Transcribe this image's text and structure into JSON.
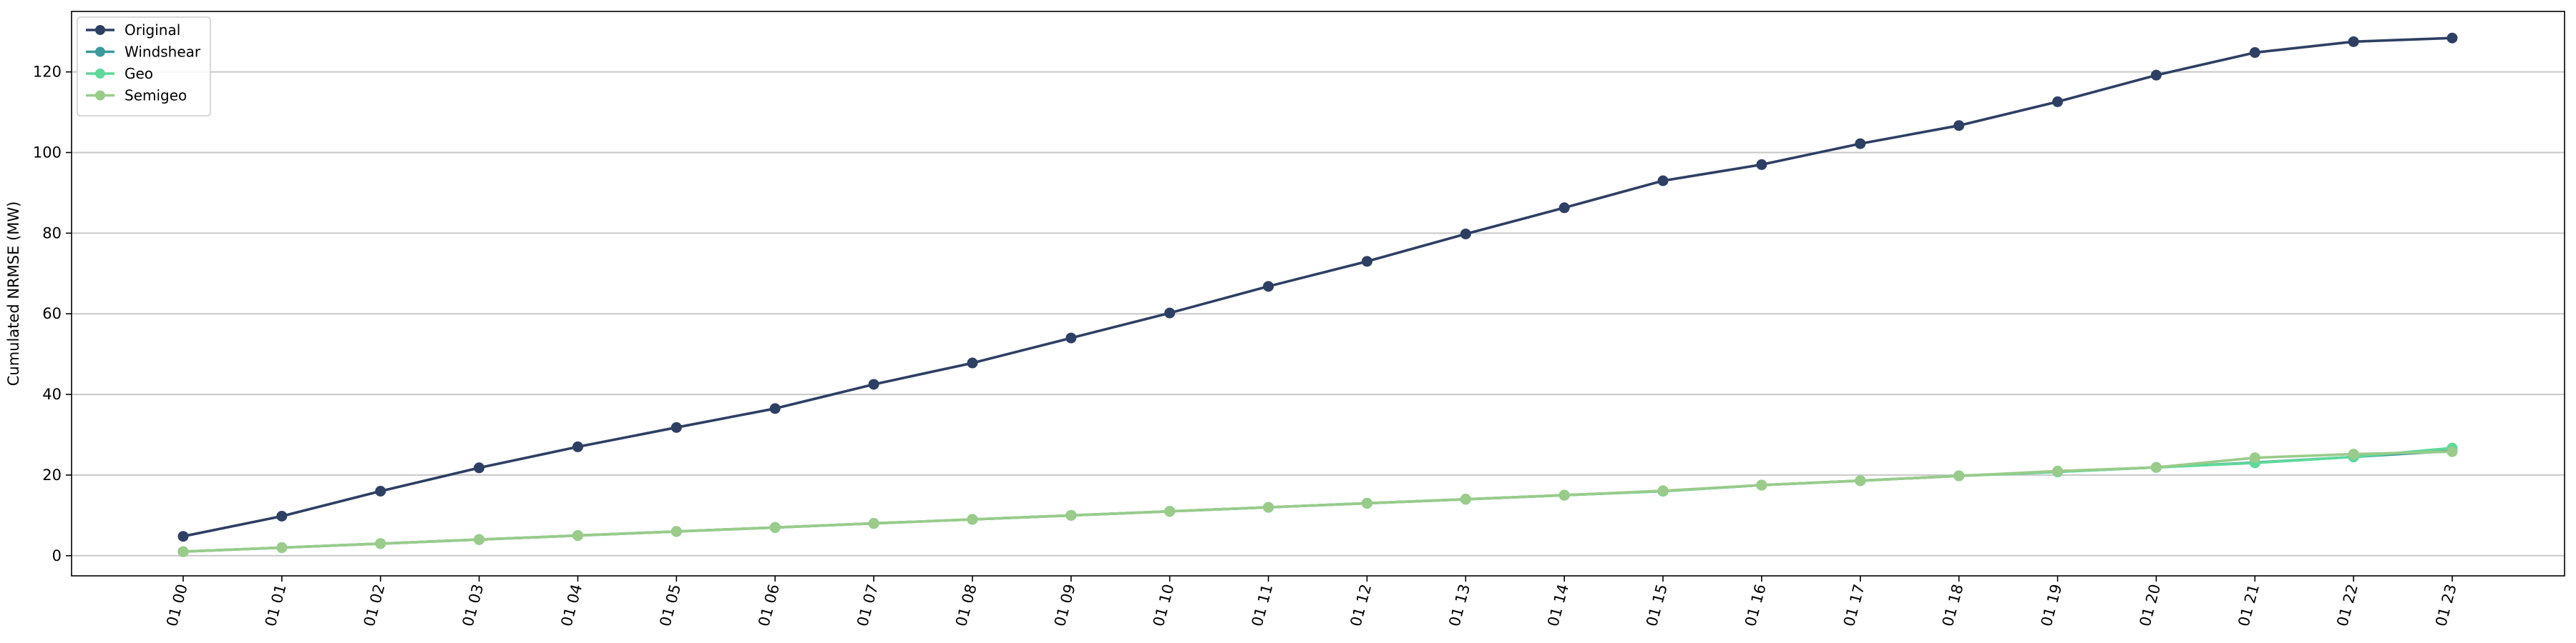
{
  "colors": {
    "original": "#2e3f64",
    "windshear": "#3b9a9a",
    "geo": "#5ed99a",
    "semigeo": "#9acb8a",
    "grid": "#c8c8c8",
    "axis": "#000000"
  },
  "chart_data": {
    "type": "line",
    "xlabel": "",
    "ylabel": "Cumulated NRMSE (MW)",
    "ylim": [
      -5,
      135
    ],
    "yticks": [
      0,
      20,
      40,
      60,
      80,
      100,
      120
    ],
    "y_grid": true,
    "legend_position": "top-left",
    "categories": [
      "01 00",
      "01 01",
      "01 02",
      "01 03",
      "01 04",
      "01 05",
      "01 06",
      "01 07",
      "01 08",
      "01 09",
      "01 10",
      "01 11",
      "01 12",
      "01 13",
      "01 14",
      "01 15",
      "01 16",
      "01 17",
      "01 18",
      "01 19",
      "01 20",
      "01 21",
      "01 22",
      "01 23"
    ],
    "series": [
      {
        "name": "Original",
        "color_key": "original",
        "values": [
          4.8,
          9.8,
          16.0,
          21.8,
          27.0,
          31.8,
          36.5,
          42.5,
          47.8,
          54.0,
          60.2,
          66.8,
          73.0,
          79.8,
          86.3,
          93.0,
          97.0,
          102.2,
          106.7,
          112.6,
          119.2,
          124.8,
          127.5,
          128.4
        ]
      },
      {
        "name": "Windshear",
        "color_key": "windshear",
        "values": [
          1.0,
          2.0,
          3.0,
          4.0,
          5.0,
          6.0,
          7.0,
          8.0,
          9.0,
          10.0,
          11.0,
          12.0,
          13.0,
          14.0,
          15.0,
          16.0,
          17.5,
          18.6,
          19.8,
          20.8,
          21.9,
          23.1,
          24.5,
          26.0
        ]
      },
      {
        "name": "Geo",
        "color_key": "geo",
        "values": [
          1.0,
          2.0,
          3.0,
          4.0,
          5.0,
          6.0,
          7.0,
          8.0,
          9.0,
          10.0,
          11.0,
          12.0,
          13.0,
          14.0,
          15.0,
          16.0,
          17.5,
          18.6,
          19.8,
          20.8,
          21.9,
          23.0,
          24.5,
          26.7
        ]
      },
      {
        "name": "Semigeo",
        "color_key": "semigeo",
        "values": [
          1.0,
          2.0,
          3.0,
          4.0,
          5.0,
          6.0,
          7.0,
          8.0,
          9.0,
          10.0,
          11.0,
          12.0,
          13.0,
          14.0,
          15.0,
          16.1,
          17.5,
          18.6,
          19.8,
          21.0,
          21.9,
          24.3,
          25.2,
          25.8
        ]
      }
    ]
  }
}
